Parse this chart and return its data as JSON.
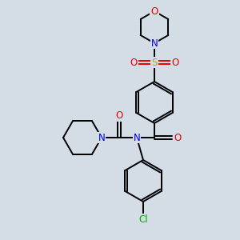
{
  "background_color": "#d4dce6",
  "atom_colors": {
    "C": "#000000",
    "N": "#0000ee",
    "O": "#ee0000",
    "S": "#bbaa00",
    "Cl": "#00aa00"
  },
  "figsize": [
    3.0,
    3.0
  ],
  "dpi": 100
}
